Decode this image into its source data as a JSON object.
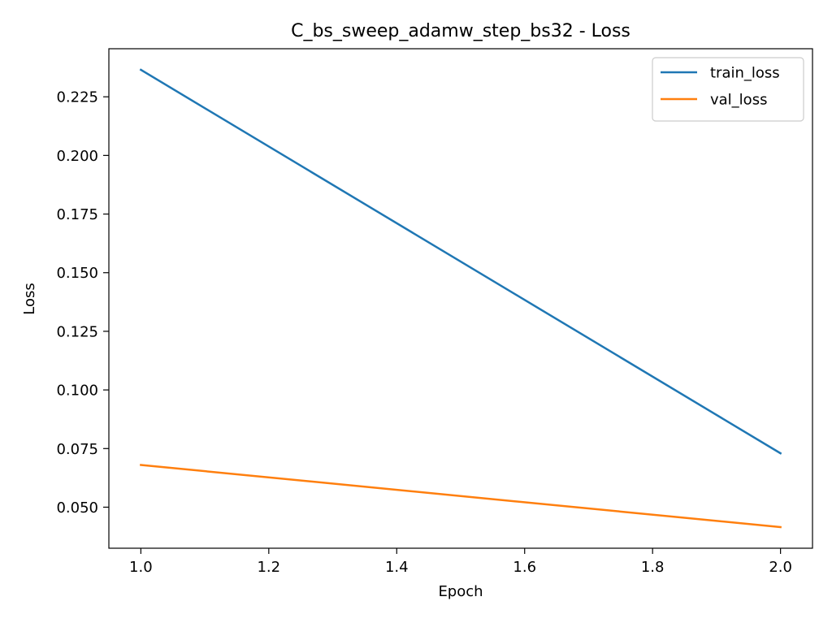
{
  "chart_data": {
    "type": "line",
    "title": "C_bs_sweep_adamw_step_bs32 - Loss",
    "xlabel": "Epoch",
    "ylabel": "Loss",
    "xlim": [
      0.95,
      2.05
    ],
    "ylim": [
      0.0325,
      0.2455
    ],
    "x_ticks": [
      1.0,
      1.2,
      1.4,
      1.6,
      1.8,
      2.0
    ],
    "x_tick_labels": [
      "1.0",
      "1.2",
      "1.4",
      "1.6",
      "1.8",
      "2.0"
    ],
    "y_ticks": [
      0.05,
      0.075,
      0.1,
      0.125,
      0.15,
      0.175,
      0.2,
      0.225
    ],
    "y_tick_labels": [
      "0.050",
      "0.075",
      "0.100",
      "0.125",
      "0.150",
      "0.175",
      "0.200",
      "0.225"
    ],
    "grid": false,
    "legend_position": "top-right",
    "series": [
      {
        "name": "train_loss",
        "color": "#1f77b4",
        "x": [
          1.0,
          2.0
        ],
        "y": [
          0.2365,
          0.073
        ]
      },
      {
        "name": "val_loss",
        "color": "#ff7f0e",
        "x": [
          1.0,
          2.0
        ],
        "y": [
          0.068,
          0.0415
        ]
      }
    ]
  }
}
